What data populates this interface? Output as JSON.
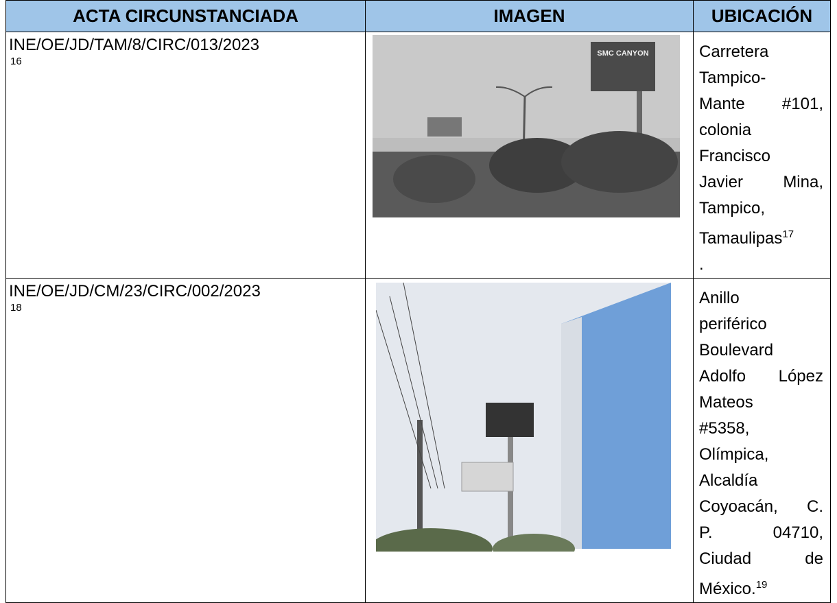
{
  "table": {
    "headers": [
      "ACTA CIRCUNSTANCIADA",
      "IMAGEN",
      "UBICACIÓN"
    ],
    "rows": [
      {
        "acta": "INE/OE/JD/TAM/8/CIRC/013/2023",
        "acta_note": "16",
        "image_text": "SMC CANYON",
        "location_lines": [
          "Carretera",
          "Tampico-",
          "Mante #101,",
          "colonia",
          "Francisco",
          "Javier Mina,",
          "Tampico,",
          "Tamaulipas"
        ],
        "location_note": "17",
        "location_tail": "."
      },
      {
        "acta": "INE/OE/JD/CM/23/CIRC/002/2023",
        "acta_note": "18",
        "location_lines": [
          "Anillo",
          "periférico",
          "Boulevard",
          "Adolfo López",
          "Mateos",
          "#5358,",
          "Olímpica,",
          "Alcaldía",
          "Coyoacán, C.",
          "P. 04710,",
          "Ciudad de",
          "México."
        ],
        "location_note": "19"
      }
    ]
  }
}
